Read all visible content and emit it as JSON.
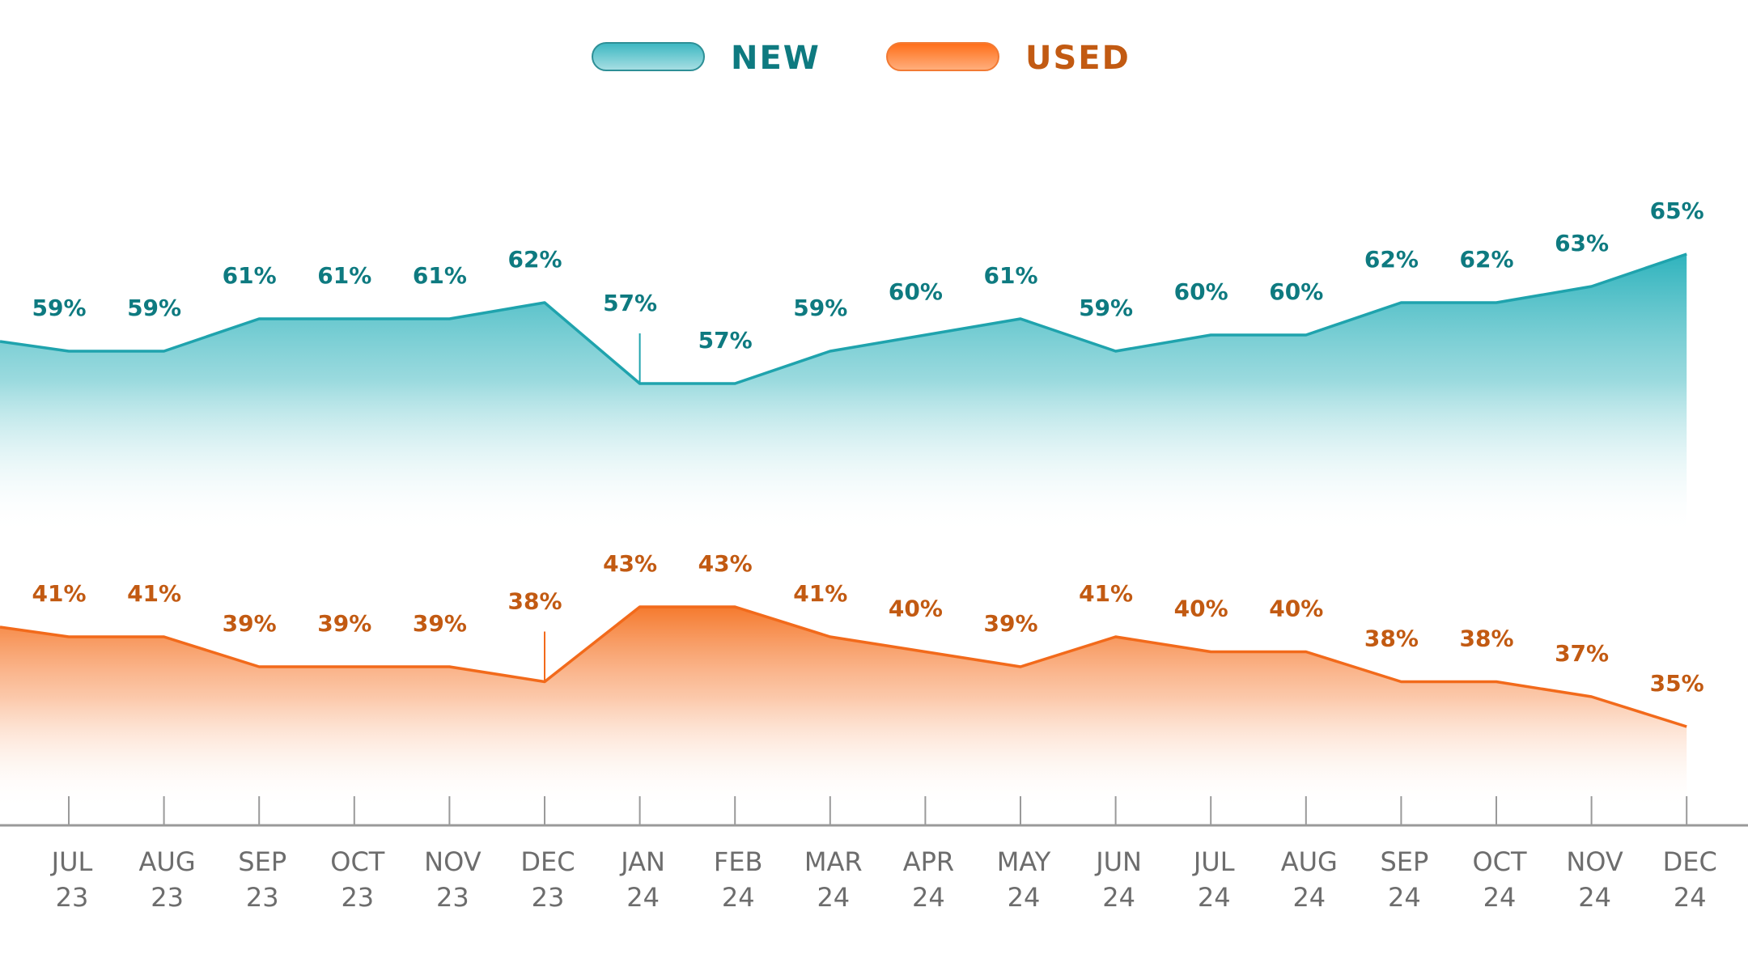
{
  "chart_data": {
    "type": "area",
    "title": "",
    "xlabel": "",
    "ylabel": "",
    "grid": false,
    "legend_placement": "top-center",
    "categories": [
      [
        "JUL",
        "23"
      ],
      [
        "AUG",
        "23"
      ],
      [
        "SEP",
        "23"
      ],
      [
        "OCT",
        "23"
      ],
      [
        "NOV",
        "23"
      ],
      [
        "DEC",
        "23"
      ],
      [
        "JAN",
        "24"
      ],
      [
        "FEB",
        "24"
      ],
      [
        "MAR",
        "24"
      ],
      [
        "APR",
        "24"
      ],
      [
        "MAY",
        "24"
      ],
      [
        "JUN",
        "24"
      ],
      [
        "JUL",
        "24"
      ],
      [
        "AUG",
        "24"
      ],
      [
        "SEP",
        "24"
      ],
      [
        "OCT",
        "24"
      ],
      [
        "NOV",
        "24"
      ],
      [
        "DEC",
        "24"
      ]
    ],
    "series": [
      {
        "name": "NEW",
        "color": "#1fa3ad",
        "label_color": "#0e7a80",
        "values": [
          59,
          59,
          61,
          61,
          61,
          62,
          57,
          57,
          59,
          60,
          61,
          59,
          60,
          60,
          62,
          62,
          63,
          65
        ]
      },
      {
        "name": "USED",
        "color": "#f26a1b",
        "label_color": "#c25a12",
        "values": [
          41,
          41,
          39,
          39,
          39,
          38,
          43,
          43,
          41,
          40,
          39,
          41,
          40,
          40,
          38,
          38,
          37,
          35
        ]
      }
    ],
    "value_suffix": "%"
  }
}
